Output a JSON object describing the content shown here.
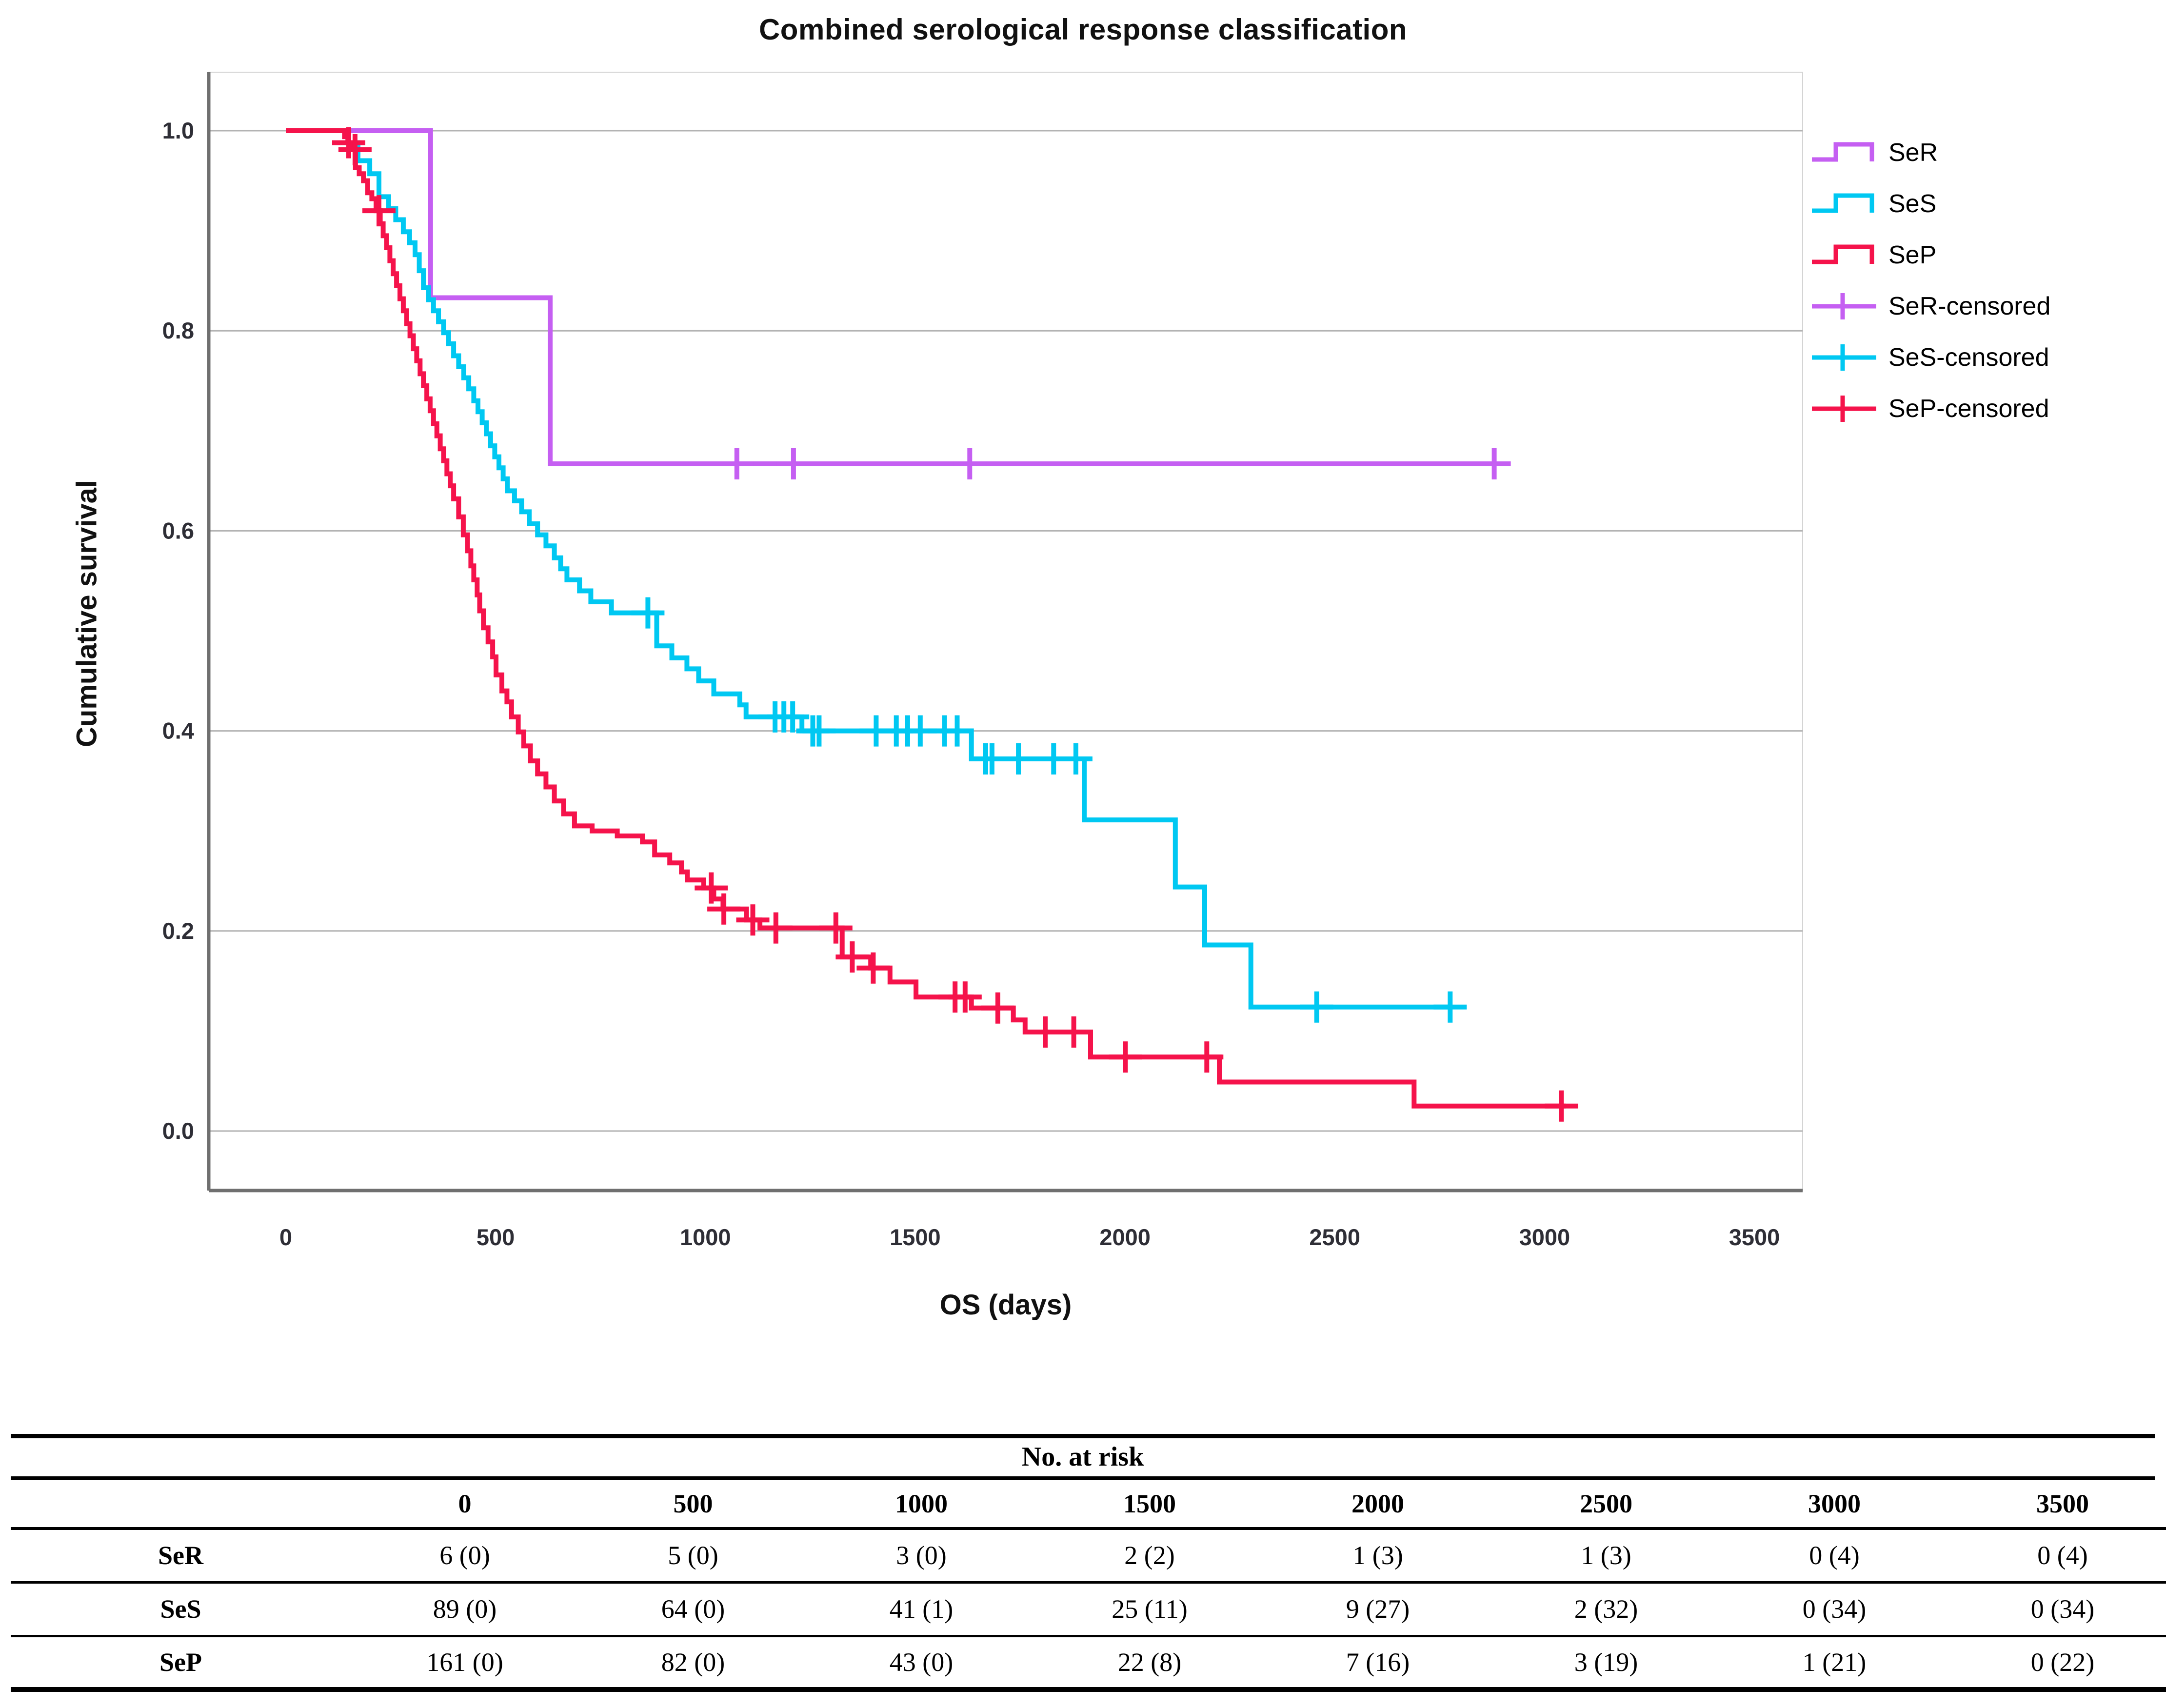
{
  "chart": {
    "title": "Combined serological response classification",
    "x_label": "OS (days)",
    "y_label": "Cumulative survival"
  },
  "chart_data": {
    "type": "line",
    "subtype": "kaplan-meier-step",
    "title": "Combined serological response classification",
    "xlabel": "OS (days)",
    "ylabel": "Cumulative survival",
    "xlim": [
      0,
      3500
    ],
    "ylim": [
      0.0,
      1.0
    ],
    "x_ticks": [
      0,
      500,
      1000,
      1500,
      2000,
      2500,
      3000,
      3500
    ],
    "y_ticks": [
      1.0,
      0.8,
      0.6,
      0.4,
      0.2,
      0.0
    ],
    "y_tick_labels": [
      "1.0",
      "0.8",
      "0.6",
      "0.4",
      "0.2",
      "0.0"
    ],
    "grid": "horizontal",
    "legend_position": "right",
    "series": [
      {
        "name": "SeR",
        "color": "#c55ff2",
        "steps": [
          [
            0,
            1.0
          ],
          [
            345,
            0.833
          ],
          [
            630,
            0.667
          ],
          [
            2880,
            0.667
          ]
        ],
        "censored_days": [
          1075,
          1210,
          1630,
          2880
        ]
      },
      {
        "name": "SeS",
        "color": "#00c8f2",
        "steps": [
          [
            0,
            1.0
          ],
          [
            148,
            0.988
          ],
          [
            172,
            0.97
          ],
          [
            200,
            0.957
          ],
          [
            222,
            0.934
          ],
          [
            245,
            0.922
          ],
          [
            262,
            0.911
          ],
          [
            280,
            0.899
          ],
          [
            295,
            0.888
          ],
          [
            308,
            0.876
          ],
          [
            318,
            0.86
          ],
          [
            328,
            0.843
          ],
          [
            340,
            0.831
          ],
          [
            352,
            0.82
          ],
          [
            364,
            0.809
          ],
          [
            376,
            0.798
          ],
          [
            388,
            0.787
          ],
          [
            400,
            0.775
          ],
          [
            412,
            0.764
          ],
          [
            424,
            0.753
          ],
          [
            436,
            0.742
          ],
          [
            448,
            0.73
          ],
          [
            458,
            0.719
          ],
          [
            468,
            0.708
          ],
          [
            478,
            0.697
          ],
          [
            488,
            0.685
          ],
          [
            498,
            0.674
          ],
          [
            508,
            0.663
          ],
          [
            518,
            0.652
          ],
          [
            528,
            0.64
          ],
          [
            545,
            0.63
          ],
          [
            562,
            0.619
          ],
          [
            580,
            0.607
          ],
          [
            600,
            0.596
          ],
          [
            620,
            0.585
          ],
          [
            640,
            0.573
          ],
          [
            655,
            0.562
          ],
          [
            670,
            0.551
          ],
          [
            700,
            0.54
          ],
          [
            727,
            0.529
          ],
          [
            776,
            0.518
          ],
          [
            884,
            0.485
          ],
          [
            920,
            0.473
          ],
          [
            956,
            0.462
          ],
          [
            984,
            0.45
          ],
          [
            1020,
            0.437
          ],
          [
            1082,
            0.426
          ],
          [
            1097,
            0.414
          ],
          [
            1230,
            0.4
          ],
          [
            1634,
            0.372
          ],
          [
            1903,
            0.311
          ],
          [
            2120,
            0.244
          ],
          [
            2190,
            0.186
          ],
          [
            2300,
            0.124
          ],
          [
            2775,
            0.124
          ]
        ],
        "censored_days": [
          863,
          1166,
          1187,
          1208,
          1256,
          1271,
          1407,
          1455,
          1482,
          1512,
          1570,
          1600,
          1668,
          1683,
          1746,
          1830,
          1883,
          2457,
          2775
        ]
      },
      {
        "name": "SeP",
        "color": "#f5134b",
        "steps": [
          [
            0,
            1.0
          ],
          [
            140,
            0.994
          ],
          [
            148,
            0.988
          ],
          [
            157,
            0.981
          ],
          [
            166,
            0.963
          ],
          [
            175,
            0.957
          ],
          [
            185,
            0.95
          ],
          [
            195,
            0.938
          ],
          [
            205,
            0.932
          ],
          [
            215,
            0.92
          ],
          [
            225,
            0.907
          ],
          [
            232,
            0.895
          ],
          [
            240,
            0.883
          ],
          [
            248,
            0.87
          ],
          [
            256,
            0.857
          ],
          [
            264,
            0.845
          ],
          [
            272,
            0.832
          ],
          [
            280,
            0.82
          ],
          [
            288,
            0.807
          ],
          [
            296,
            0.795
          ],
          [
            304,
            0.782
          ],
          [
            312,
            0.77
          ],
          [
            320,
            0.757
          ],
          [
            328,
            0.745
          ],
          [
            336,
            0.732
          ],
          [
            344,
            0.72
          ],
          [
            352,
            0.707
          ],
          [
            360,
            0.695
          ],
          [
            368,
            0.682
          ],
          [
            376,
            0.67
          ],
          [
            384,
            0.657
          ],
          [
            392,
            0.645
          ],
          [
            400,
            0.632
          ],
          [
            412,
            0.614
          ],
          [
            423,
            0.596
          ],
          [
            433,
            0.58
          ],
          [
            441,
            0.565
          ],
          [
            448,
            0.551
          ],
          [
            456,
            0.536
          ],
          [
            462,
            0.52
          ],
          [
            471,
            0.503
          ],
          [
            482,
            0.489
          ],
          [
            493,
            0.474
          ],
          [
            501,
            0.456
          ],
          [
            515,
            0.44
          ],
          [
            527,
            0.429
          ],
          [
            538,
            0.414
          ],
          [
            554,
            0.399
          ],
          [
            567,
            0.385
          ],
          [
            583,
            0.37
          ],
          [
            600,
            0.357
          ],
          [
            620,
            0.344
          ],
          [
            640,
            0.33
          ],
          [
            662,
            0.317
          ],
          [
            688,
            0.305
          ],
          [
            730,
            0.3
          ],
          [
            790,
            0.295
          ],
          [
            850,
            0.289
          ],
          [
            879,
            0.276
          ],
          [
            915,
            0.268
          ],
          [
            943,
            0.259
          ],
          [
            957,
            0.251
          ],
          [
            996,
            0.243
          ],
          [
            1020,
            0.232
          ],
          [
            1042,
            0.222
          ],
          [
            1098,
            0.211
          ],
          [
            1130,
            0.203
          ],
          [
            1326,
            0.174
          ],
          [
            1394,
            0.163
          ],
          [
            1440,
            0.149
          ],
          [
            1502,
            0.134
          ],
          [
            1634,
            0.123
          ],
          [
            1734,
            0.111
          ],
          [
            1762,
            0.099
          ],
          [
            1918,
            0.074
          ],
          [
            2225,
            0.049
          ],
          [
            2689,
            0.025
          ],
          [
            3050,
            0.025
          ]
        ],
        "censored_days": [
          150,
          165,
          222,
          1014,
          1044,
          1113,
          1168,
          1311,
          1350,
          1400,
          1595,
          1619,
          1697,
          1810,
          1878,
          2001,
          2195,
          3040
        ]
      }
    ]
  },
  "legend": {
    "items": [
      {
        "label": "SeR",
        "color": "#c55ff2",
        "marker": "step-line"
      },
      {
        "label": "SeS",
        "color": "#00c8f2",
        "marker": "step-line"
      },
      {
        "label": "SeP",
        "color": "#f5134b",
        "marker": "step-line"
      },
      {
        "label": "SeR-censored",
        "color": "#c55ff2",
        "marker": "plus"
      },
      {
        "label": "SeS-censored",
        "color": "#00c8f2",
        "marker": "plus"
      },
      {
        "label": "SeP-censored",
        "color": "#f5134b",
        "marker": "plus"
      }
    ]
  },
  "risk_table": {
    "title": "No. at risk",
    "time_points": [
      "0",
      "500",
      "1000",
      "1500",
      "2000",
      "2500",
      "3000",
      "3500"
    ],
    "rows": [
      {
        "group": "SeR",
        "values": [
          "6 (0)",
          "5 (0)",
          "3 (0)",
          "2 (2)",
          "1 (3)",
          "1 (3)",
          "0 (4)",
          "0 (4)"
        ]
      },
      {
        "group": "SeS",
        "values": [
          "89 (0)",
          "64 (0)",
          "41 (1)",
          "25 (11)",
          "9 (27)",
          "2 (32)",
          "0 (34)",
          "0 (34)"
        ]
      },
      {
        "group": "SeP",
        "values": [
          "161 (0)",
          "82 (0)",
          "43 (0)",
          "22 (8)",
          "7 (16)",
          "3 (19)",
          "1 (21)",
          "0 (22)"
        ]
      }
    ]
  },
  "colors": {
    "grid": "#b3b3b3",
    "axis": "#6f6f6f",
    "frame": "#d4d4d4",
    "tick_text": "#2e2e36"
  }
}
